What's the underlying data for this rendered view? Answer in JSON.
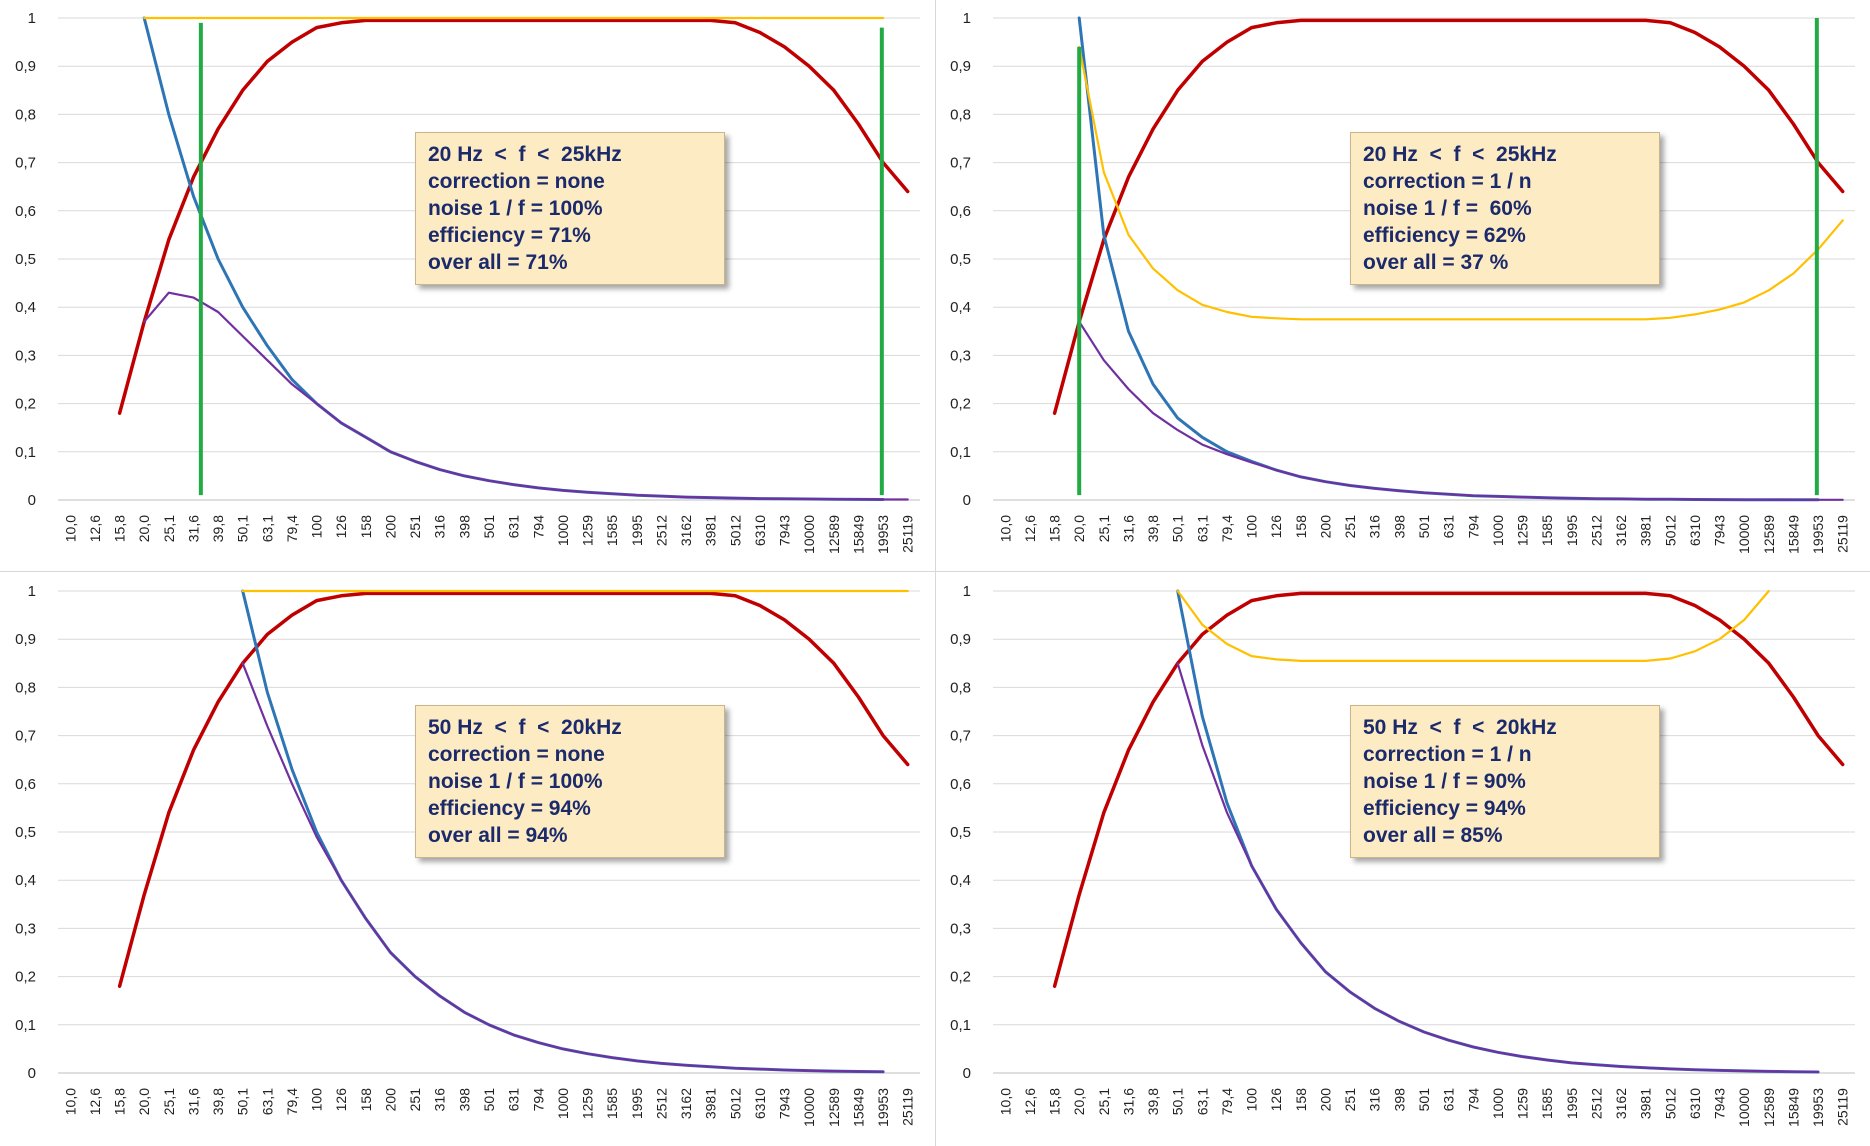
{
  "colors": {
    "red": "#c00000",
    "blue": "#2e75b6",
    "purple": "#7030a0",
    "orange": "#ffc000",
    "green": "#22aa44"
  },
  "chart_data": [
    {
      "type": "line",
      "x": [
        "10,0",
        "12,6",
        "15,8",
        "20,0",
        "25,1",
        "31,6",
        "39,8",
        "50,1",
        "63,1",
        "79,4",
        "100",
        "126",
        "158",
        "200",
        "251",
        "316",
        "398",
        "501",
        "631",
        "794",
        "1000",
        "1259",
        "1585",
        "1995",
        "2512",
        "3162",
        "3981",
        "5012",
        "6310",
        "7943",
        "10000",
        "12589",
        "15849",
        "19953",
        "25119"
      ],
      "ylim": [
        0,
        1
      ],
      "yticks": [
        "0",
        "0,1",
        "0,2",
        "0,3",
        "0,4",
        "0,5",
        "0,6",
        "0,7",
        "0,8",
        "0,9",
        "1"
      ],
      "series": [
        {
          "color_key": "red",
          "values": [
            null,
            null,
            0.18,
            0.37,
            0.54,
            0.67,
            0.77,
            0.85,
            0.91,
            0.95,
            0.98,
            0.99,
            0.995,
            0.995,
            0.995,
            0.995,
            0.995,
            0.995,
            0.995,
            0.995,
            0.995,
            0.995,
            0.995,
            0.995,
            0.995,
            0.995,
            0.995,
            0.99,
            0.97,
            0.94,
            0.9,
            0.85,
            0.78,
            0.7,
            0.64
          ]
        },
        {
          "color_key": "blue",
          "values": [
            null,
            null,
            null,
            1.0,
            0.8,
            0.63,
            0.5,
            0.4,
            0.32,
            0.25,
            0.2,
            0.16,
            0.13,
            0.1,
            0.08,
            0.063,
            0.05,
            0.04,
            0.032,
            0.025,
            0.02,
            0.016,
            0.013,
            0.01,
            0.008,
            0.006,
            0.005,
            0.004,
            0.003,
            0.0025,
            0.002,
            0.0016,
            0.0013,
            0.001,
            null
          ]
        },
        {
          "color_key": "purple",
          "values": [
            null,
            null,
            null,
            0.37,
            0.43,
            0.42,
            0.39,
            0.34,
            0.29,
            0.24,
            0.2,
            0.16,
            0.13,
            0.1,
            0.08,
            0.063,
            0.05,
            0.04,
            0.032,
            0.025,
            0.02,
            0.016,
            0.013,
            0.01,
            0.008,
            0.006,
            0.005,
            0.004,
            0.003,
            0.0025,
            0.002,
            0.0016,
            0.0013,
            0.001,
            0.001
          ]
        },
        {
          "color_key": "orange",
          "values": [
            null,
            null,
            null,
            1.0,
            1.0,
            1.0,
            1.0,
            1.0,
            1.0,
            1.0,
            1.0,
            1.0,
            1.0,
            1.0,
            1.0,
            1.0,
            1.0,
            1.0,
            1.0,
            1.0,
            1.0,
            1.0,
            1.0,
            1.0,
            1.0,
            1.0,
            1.0,
            1.0,
            1.0,
            1.0,
            1.0,
            1.0,
            1.0,
            1.0,
            null
          ]
        }
      ],
      "markers": [
        {
          "x": "31,6",
          "value": 0.99,
          "offset": 0.3
        },
        {
          "x": "19953",
          "value": 0.98,
          "offset": -0.05
        }
      ],
      "annotation": [
        "20 Hz  <  f  <  25kHz",
        "correction = none",
        "noise 1 / f = 100%",
        "efficiency = 71%",
        "over all = 71%"
      ],
      "annotation_anchor": {
        "x": "100",
        "y": 0.76
      }
    },
    {
      "type": "line",
      "x": [
        "10,0",
        "12,6",
        "15,8",
        "20,0",
        "25,1",
        "31,6",
        "39,8",
        "50,1",
        "63,1",
        "79,4",
        "100",
        "126",
        "158",
        "200",
        "251",
        "316",
        "398",
        "501",
        "631",
        "794",
        "1000",
        "1259",
        "1585",
        "1995",
        "2512",
        "3162",
        "3981",
        "5012",
        "6310",
        "7943",
        "10000",
        "12589",
        "15849",
        "19953",
        "25119"
      ],
      "ylim": [
        0,
        1
      ],
      "yticks": [
        "0",
        "0,1",
        "0,2",
        "0,3",
        "0,4",
        "0,5",
        "0,6",
        "0,7",
        "0,8",
        "0,9",
        "1"
      ],
      "series": [
        {
          "color_key": "red",
          "values": [
            null,
            null,
            0.18,
            0.37,
            0.54,
            0.67,
            0.77,
            0.85,
            0.91,
            0.95,
            0.98,
            0.99,
            0.995,
            0.995,
            0.995,
            0.995,
            0.995,
            0.995,
            0.995,
            0.995,
            0.995,
            0.995,
            0.995,
            0.995,
            0.995,
            0.995,
            0.995,
            0.99,
            0.97,
            0.94,
            0.9,
            0.85,
            0.78,
            0.7,
            0.64
          ]
        },
        {
          "color_key": "blue",
          "values": [
            null,
            null,
            null,
            1.0,
            0.55,
            0.35,
            0.24,
            0.17,
            0.13,
            0.1,
            0.08,
            0.062,
            0.048,
            0.038,
            0.03,
            0.024,
            0.019,
            0.015,
            0.012,
            0.009,
            0.0075,
            0.006,
            0.0045,
            0.0035,
            0.0028,
            0.0022,
            0.0017,
            0.0014,
            0.0011,
            0.0009,
            0.0007,
            0.0006,
            0.0005,
            0.0004,
            null
          ]
        },
        {
          "color_key": "purple",
          "values": [
            null,
            null,
            null,
            0.37,
            0.29,
            0.23,
            0.18,
            0.145,
            0.115,
            0.095,
            0.078,
            0.062,
            0.048,
            0.038,
            0.03,
            0.024,
            0.019,
            0.015,
            0.012,
            0.009,
            0.0075,
            0.006,
            0.0045,
            0.0035,
            0.0028,
            0.0022,
            0.0017,
            0.0014,
            0.0011,
            0.0009,
            0.0007,
            0.0006,
            0.0005,
            0.0004,
            0.0004
          ]
        },
        {
          "color_key": "orange",
          "values": [
            null,
            null,
            null,
            0.94,
            0.68,
            0.55,
            0.48,
            0.435,
            0.405,
            0.39,
            0.38,
            0.377,
            0.375,
            0.375,
            0.375,
            0.375,
            0.375,
            0.375,
            0.375,
            0.375,
            0.375,
            0.375,
            0.375,
            0.375,
            0.375,
            0.375,
            0.375,
            0.378,
            0.385,
            0.395,
            0.41,
            0.435,
            0.47,
            0.52,
            0.58
          ]
        }
      ],
      "markers": [
        {
          "x": "20,0",
          "value": 0.94,
          "offset": 0
        },
        {
          "x": "19953",
          "value": 1.0,
          "offset": -0.05
        }
      ],
      "annotation": [
        "20 Hz  <  f  <  25kHz",
        "correction = 1 / n",
        "noise 1 / f =  60%",
        "efficiency = 62%",
        "over all = 37 %"
      ],
      "annotation_anchor": {
        "x": "100",
        "y": 0.76
      }
    },
    {
      "type": "line",
      "x": [
        "10,0",
        "12,6",
        "15,8",
        "20,0",
        "25,1",
        "31,6",
        "39,8",
        "50,1",
        "63,1",
        "79,4",
        "100",
        "126",
        "158",
        "200",
        "251",
        "316",
        "398",
        "501",
        "631",
        "794",
        "1000",
        "1259",
        "1585",
        "1995",
        "2512",
        "3162",
        "3981",
        "5012",
        "6310",
        "7943",
        "10000",
        "12589",
        "15849",
        "19953",
        "25119"
      ],
      "ylim": [
        0,
        1
      ],
      "yticks": [
        "0",
        "0,1",
        "0,2",
        "0,3",
        "0,4",
        "0,5",
        "0,6",
        "0,7",
        "0,8",
        "0,9",
        "1"
      ],
      "series": [
        {
          "color_key": "red",
          "values": [
            null,
            null,
            0.18,
            0.37,
            0.54,
            0.67,
            0.77,
            0.85,
            0.91,
            0.95,
            0.98,
            0.99,
            0.995,
            0.995,
            0.995,
            0.995,
            0.995,
            0.995,
            0.995,
            0.995,
            0.995,
            0.995,
            0.995,
            0.995,
            0.995,
            0.995,
            0.995,
            0.99,
            0.97,
            0.94,
            0.9,
            0.85,
            0.78,
            0.7,
            0.64
          ]
        },
        {
          "color_key": "blue",
          "values": [
            null,
            null,
            null,
            null,
            null,
            null,
            null,
            1.0,
            0.79,
            0.63,
            0.5,
            0.4,
            0.32,
            0.25,
            0.2,
            0.16,
            0.126,
            0.1,
            0.079,
            0.063,
            0.05,
            0.04,
            0.032,
            0.025,
            0.02,
            0.016,
            0.013,
            0.01,
            0.008,
            0.0063,
            0.005,
            0.004,
            0.0032,
            0.0025,
            null
          ]
        },
        {
          "color_key": "purple",
          "values": [
            null,
            null,
            null,
            null,
            null,
            null,
            null,
            0.85,
            0.72,
            0.6,
            0.49,
            0.4,
            0.32,
            0.25,
            0.2,
            0.16,
            0.126,
            0.1,
            0.079,
            0.063,
            0.05,
            0.04,
            0.032,
            0.025,
            0.02,
            0.016,
            0.013,
            0.01,
            0.008,
            0.0063,
            0.005,
            0.004,
            0.0032,
            0.0025,
            null
          ]
        },
        {
          "color_key": "orange",
          "values": [
            null,
            null,
            null,
            null,
            null,
            null,
            null,
            1.0,
            1.0,
            1.0,
            1.0,
            1.0,
            1.0,
            1.0,
            1.0,
            1.0,
            1.0,
            1.0,
            1.0,
            1.0,
            1.0,
            1.0,
            1.0,
            1.0,
            1.0,
            1.0,
            1.0,
            1.0,
            1.0,
            1.0,
            1.0,
            1.0,
            1.0,
            1.0,
            1.0
          ]
        }
      ],
      "markers": [],
      "annotation": [
        "50 Hz  <  f  <  20kHz",
        "correction = none",
        "noise 1 / f = 100%",
        "efficiency = 94%",
        "over all = 94%"
      ],
      "annotation_anchor": {
        "x": "100",
        "y": 0.76
      }
    },
    {
      "type": "line",
      "x": [
        "10,0",
        "12,6",
        "15,8",
        "20,0",
        "25,1",
        "31,6",
        "39,8",
        "50,1",
        "63,1",
        "79,4",
        "100",
        "126",
        "158",
        "200",
        "251",
        "316",
        "398",
        "501",
        "631",
        "794",
        "1000",
        "1259",
        "1585",
        "1995",
        "2512",
        "3162",
        "3981",
        "5012",
        "6310",
        "7943",
        "10000",
        "12589",
        "15849",
        "19953",
        "25119"
      ],
      "ylim": [
        0,
        1
      ],
      "yticks": [
        "0",
        "0,1",
        "0,2",
        "0,3",
        "0,4",
        "0,5",
        "0,6",
        "0,7",
        "0,8",
        "0,9",
        "1"
      ],
      "series": [
        {
          "color_key": "red",
          "values": [
            null,
            null,
            0.18,
            0.37,
            0.54,
            0.67,
            0.77,
            0.85,
            0.91,
            0.95,
            0.98,
            0.99,
            0.995,
            0.995,
            0.995,
            0.995,
            0.995,
            0.995,
            0.995,
            0.995,
            0.995,
            0.995,
            0.995,
            0.995,
            0.995,
            0.995,
            0.995,
            0.99,
            0.97,
            0.94,
            0.9,
            0.85,
            0.78,
            0.7,
            0.64
          ]
        },
        {
          "color_key": "blue",
          "values": [
            null,
            null,
            null,
            null,
            null,
            null,
            null,
            1.0,
            0.74,
            0.56,
            0.43,
            0.34,
            0.27,
            0.21,
            0.168,
            0.134,
            0.107,
            0.085,
            0.068,
            0.054,
            0.043,
            0.034,
            0.027,
            0.021,
            0.017,
            0.0135,
            0.0107,
            0.0085,
            0.0068,
            0.0054,
            0.0043,
            0.0034,
            0.0027,
            0.0021,
            null
          ]
        },
        {
          "color_key": "purple",
          "values": [
            null,
            null,
            null,
            null,
            null,
            null,
            null,
            0.85,
            0.68,
            0.54,
            0.43,
            0.34,
            0.27,
            0.21,
            0.168,
            0.134,
            0.107,
            0.085,
            0.068,
            0.054,
            0.043,
            0.034,
            0.027,
            0.021,
            0.017,
            0.0135,
            0.0107,
            0.0085,
            0.0068,
            0.0054,
            0.0043,
            0.0034,
            0.0027,
            0.0021,
            null
          ]
        },
        {
          "color_key": "orange",
          "values": [
            null,
            null,
            null,
            null,
            null,
            null,
            null,
            1.0,
            0.93,
            0.89,
            0.865,
            0.858,
            0.855,
            0.855,
            0.855,
            0.855,
            0.855,
            0.855,
            0.855,
            0.855,
            0.855,
            0.855,
            0.855,
            0.855,
            0.855,
            0.855,
            0.855,
            0.86,
            0.875,
            0.9,
            0.94,
            1.0,
            null,
            null,
            null
          ]
        }
      ],
      "markers": [],
      "annotation": [
        "50 Hz  <  f  <  20kHz",
        "correction = 1 / n",
        "noise 1 / f = 90%",
        "efficiency = 94%",
        "over all = 85%"
      ],
      "annotation_anchor": {
        "x": "100",
        "y": 0.76
      }
    }
  ]
}
